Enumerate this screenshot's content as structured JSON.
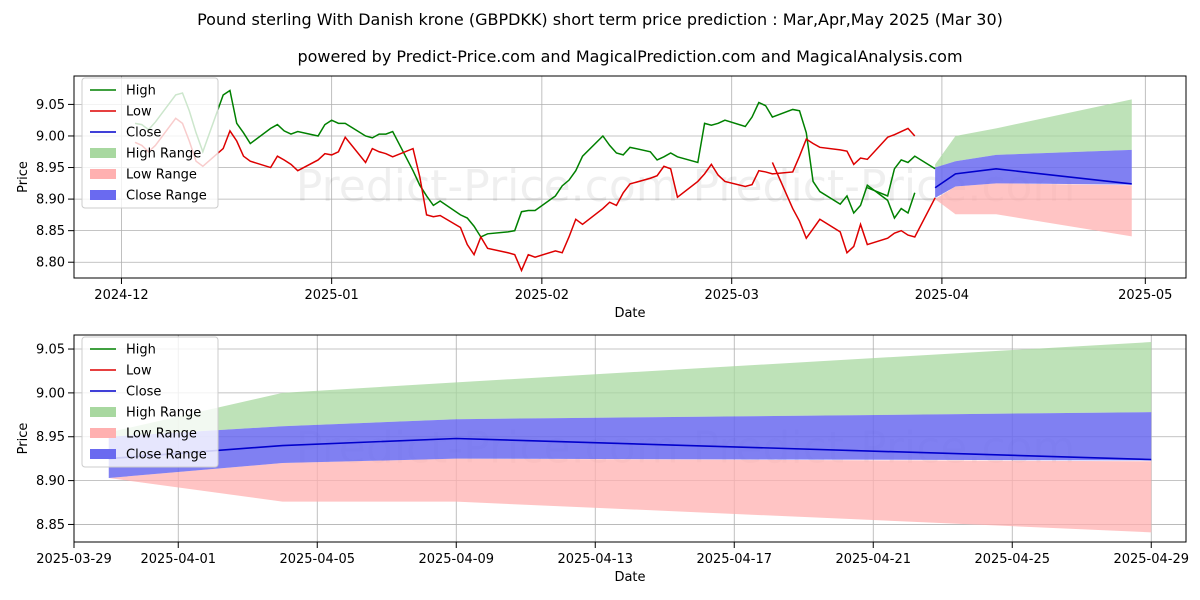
{
  "page": {
    "title": "Pound sterling With Danish krone (GBPDKK) short term price prediction : Mar,Apr,May 2025 (Mar 30)",
    "subtitle": "powered by Predict-Price.com and MagicalPrediction.com and MagicalAnalysis.com",
    "watermark": "Predict-Price.com"
  },
  "colors": {
    "high": "#008000",
    "low": "#dd0000",
    "close": "#0000cc",
    "high_range": "#a8d8a0",
    "low_range": "#ffb0b0",
    "close_range": "#6a6af0"
  },
  "chart_data": [
    {
      "id": "top",
      "type": "line",
      "xlabel": "Date",
      "ylabel": "Price",
      "xlim": [
        "2024-11-24",
        "2025-05-07"
      ],
      "ylim": [
        8.775,
        9.095
      ],
      "x_ticks": [
        "2024-12-01",
        "2025-01-01",
        "2025-02-01",
        "2025-03-01",
        "2025-04-01",
        "2025-05-01"
      ],
      "x_tick_labels": [
        "2024-12",
        "2025-01",
        "2025-02",
        "2025-03",
        "2025-04",
        "2025-05"
      ],
      "y_ticks": [
        8.8,
        8.85,
        8.9,
        8.95,
        9.0,
        9.05
      ],
      "y_tick_labels": [
        "8.80",
        "8.85",
        "8.90",
        "8.95",
        "9.00",
        "9.05"
      ],
      "grid": true,
      "legend_position": "top-left",
      "legend": [
        "High",
        "Low",
        "Close",
        "High Range",
        "Low Range",
        "Close Range"
      ],
      "series": [
        {
          "name": "High",
          "kind": "line",
          "color_key": "high",
          "x": [
            "2024-12-03",
            "2024-12-04",
            "2024-12-05",
            "2024-12-06",
            "2024-12-09",
            "2024-12-10",
            "2024-12-11",
            "2024-12-12",
            "2024-12-13",
            "2024-12-16",
            "2024-12-17",
            "2024-12-18",
            "2024-12-19",
            "2024-12-20",
            "2024-12-23",
            "2024-12-24",
            "2024-12-25",
            "2024-12-26",
            "2024-12-27",
            "2024-12-30",
            "2024-12-31",
            "2025-01-01",
            "2025-01-02",
            "2025-01-03",
            "2025-01-06",
            "2025-01-07",
            "2025-01-08",
            "2025-01-09",
            "2025-01-10",
            "2025-01-13",
            "2025-01-14",
            "2025-01-15",
            "2025-01-16",
            "2025-01-17",
            "2025-01-20",
            "2025-01-21",
            "2025-01-22",
            "2025-01-23",
            "2025-01-24",
            "2025-01-27",
            "2025-01-28",
            "2025-01-29",
            "2025-01-30",
            "2025-01-31",
            "2025-02-03",
            "2025-02-04",
            "2025-02-05",
            "2025-02-06",
            "2025-02-07",
            "2025-02-10",
            "2025-02-11",
            "2025-02-12",
            "2025-02-13",
            "2025-02-14",
            "2025-02-17",
            "2025-02-18",
            "2025-02-19",
            "2025-02-20",
            "2025-02-21",
            "2025-02-24",
            "2025-02-25",
            "2025-02-26",
            "2025-02-27",
            "2025-02-28",
            "2025-03-03",
            "2025-03-04",
            "2025-03-05",
            "2025-03-06",
            "2025-03-07",
            "2025-03-10",
            "2025-03-11",
            "2025-03-12",
            "2025-03-13",
            "2025-03-14",
            "2025-03-17",
            "2025-03-18",
            "2025-03-19",
            "2025-03-20",
            "2025-03-21",
            "2025-03-24",
            "2025-03-25",
            "2025-03-26",
            "2025-03-27",
            "2025-03-28"
          ],
          "values": [
            9.02,
            9.018,
            9.01,
            9.022,
            9.065,
            9.068,
            9.04,
            9.005,
            8.975,
            9.065,
            9.072,
            9.02,
            9.005,
            8.988,
            9.012,
            9.018,
            9.008,
            9.003,
            9.007,
            9.0,
            9.018,
            9.025,
            9.02,
            9.02,
            9.0,
            8.997,
            9.003,
            9.003,
            9.007,
            8.945,
            8.922,
            8.905,
            8.89,
            8.897,
            8.875,
            8.87,
            8.857,
            8.84,
            8.845,
            8.848,
            8.85,
            8.88,
            8.882,
            8.882,
            8.905,
            8.921,
            8.93,
            8.945,
            8.968,
            9.0,
            8.985,
            8.973,
            8.97,
            8.982,
            8.975,
            8.962,
            8.967,
            8.973,
            8.967,
            8.958,
            9.02,
            9.017,
            9.02,
            9.025,
            9.015,
            9.03,
            9.053,
            9.048,
            9.03,
            9.042,
            9.04,
            9.005,
            8.928,
            8.912,
            8.892,
            8.905,
            8.878,
            8.89,
            8.922,
            8.898,
            8.87,
            8.885,
            8.878,
            8.91
          ]
        },
        {
          "name": "High-late",
          "kind": "line",
          "color_key": "high",
          "x": [
            "2025-03-21",
            "2025-03-24",
            "2025-03-25",
            "2025-03-26",
            "2025-03-27",
            "2025-03-28",
            "2025-03-31"
          ],
          "values": [
            8.918,
            8.905,
            8.948,
            8.962,
            8.958,
            8.968,
            8.948
          ],
          "legend": false
        },
        {
          "name": "Low",
          "kind": "line",
          "color_key": "low",
          "x": [
            "2024-12-03",
            "2024-12-04",
            "2024-12-05",
            "2024-12-06",
            "2024-12-09",
            "2024-12-10",
            "2024-12-11",
            "2024-12-12",
            "2024-12-13",
            "2024-12-16",
            "2024-12-17",
            "2024-12-18",
            "2024-12-19",
            "2024-12-20",
            "2024-12-23",
            "2024-12-24",
            "2024-12-25",
            "2024-12-26",
            "2024-12-27",
            "2024-12-30",
            "2024-12-31",
            "2025-01-01",
            "2025-01-02",
            "2025-01-03",
            "2025-01-06",
            "2025-01-07",
            "2025-01-08",
            "2025-01-09",
            "2025-01-10",
            "2025-01-13",
            "2025-01-14",
            "2025-01-15",
            "2025-01-16",
            "2025-01-17",
            "2025-01-20",
            "2025-01-21",
            "2025-01-22",
            "2025-01-23",
            "2025-01-24",
            "2025-01-27",
            "2025-01-28",
            "2025-01-29",
            "2025-01-30",
            "2025-01-31",
            "2025-02-03",
            "2025-02-04",
            "2025-02-05",
            "2025-02-06",
            "2025-02-07",
            "2025-02-10",
            "2025-02-11",
            "2025-02-12",
            "2025-02-13",
            "2025-02-14",
            "2025-02-17",
            "2025-02-18",
            "2025-02-19",
            "2025-02-20",
            "2025-02-21",
            "2025-02-24",
            "2025-02-25",
            "2025-02-26",
            "2025-02-27",
            "2025-02-28",
            "2025-03-03",
            "2025-03-04",
            "2025-03-05",
            "2025-03-06",
            "2025-03-07",
            "2025-03-10",
            "2025-03-11",
            "2025-03-12",
            "2025-03-13",
            "2025-03-14",
            "2025-03-17",
            "2025-03-18",
            "2025-03-19",
            "2025-03-20",
            "2025-03-21",
            "2025-03-24",
            "2025-03-25",
            "2025-03-26",
            "2025-03-27",
            "2025-03-28"
          ],
          "values": [
            8.99,
            8.985,
            8.975,
            8.985,
            9.028,
            9.02,
            8.992,
            8.96,
            8.952,
            8.98,
            9.008,
            8.992,
            8.968,
            8.96,
            8.95,
            8.968,
            8.962,
            8.955,
            8.945,
            8.962,
            8.972,
            8.97,
            8.975,
            8.998,
            8.958,
            8.98,
            8.975,
            8.972,
            8.967,
            8.98,
            8.935,
            8.875,
            8.872,
            8.874,
            8.855,
            8.828,
            8.812,
            8.84,
            8.822,
            8.815,
            8.812,
            8.787,
            8.812,
            8.808,
            8.818,
            8.815,
            8.84,
            8.868,
            8.86,
            8.885,
            8.895,
            8.89,
            8.91,
            8.924,
            8.933,
            8.937,
            8.952,
            8.948,
            8.903,
            8.928,
            8.94,
            8.955,
            8.938,
            8.928,
            8.92,
            8.923,
            8.945,
            8.943,
            8.94,
            8.943,
            8.968,
            8.995,
            8.988,
            8.982,
            8.978,
            8.976,
            8.955,
            8.965,
            8.963,
            8.998,
            9.002,
            9.007,
            9.012,
            9.0
          ]
        },
        {
          "name": "Low-late",
          "kind": "line",
          "color_key": "low",
          "x": [
            "2025-03-07",
            "2025-03-10",
            "2025-03-11",
            "2025-03-12",
            "2025-03-13",
            "2025-03-14",
            "2025-03-17",
            "2025-03-18",
            "2025-03-19",
            "2025-03-20",
            "2025-03-21",
            "2025-03-24",
            "2025-03-25",
            "2025-03-26",
            "2025-03-27",
            "2025-03-28",
            "2025-03-31"
          ],
          "values": [
            8.958,
            8.885,
            8.865,
            8.838,
            8.853,
            8.868,
            8.848,
            8.815,
            8.825,
            8.86,
            8.828,
            8.838,
            8.846,
            8.85,
            8.843,
            8.84,
            8.902
          ],
          "legend": false
        }
      ],
      "bands": [
        {
          "name": "High Range",
          "color_key": "high_range",
          "x": [
            "2025-03-31",
            "2025-04-03",
            "2025-04-09",
            "2025-04-29"
          ],
          "upper": [
            8.955,
            9.0,
            9.012,
            9.058
          ],
          "lower": [
            8.95,
            8.96,
            8.97,
            8.978
          ]
        },
        {
          "name": "Low Range",
          "color_key": "low_range",
          "x": [
            "2025-03-31",
            "2025-04-03",
            "2025-04-09",
            "2025-04-29"
          ],
          "upper": [
            8.9,
            8.92,
            8.925,
            8.922
          ],
          "lower": [
            8.9,
            8.876,
            8.876,
            8.841
          ]
        },
        {
          "name": "Close Range",
          "color_key": "close_range",
          "x": [
            "2025-03-31",
            "2025-04-03",
            "2025-04-09",
            "2025-04-29"
          ],
          "upper": [
            8.95,
            8.96,
            8.97,
            8.978
          ],
          "lower": [
            8.902,
            8.92,
            8.925,
            8.923
          ]
        }
      ],
      "forecast": {
        "name": "Close",
        "color_key": "close",
        "x": [
          "2025-03-31",
          "2025-04-03",
          "2025-04-09",
          "2025-04-29"
        ],
        "values": [
          8.918,
          8.94,
          8.948,
          8.924
        ]
      }
    },
    {
      "id": "bottom",
      "type": "area",
      "xlabel": "Date",
      "ylabel": "Price",
      "xlim": [
        "2025-03-29",
        "2025-04-30"
      ],
      "ylim": [
        8.83,
        9.066
      ],
      "x_ticks": [
        "2025-03-29",
        "2025-04-01",
        "2025-04-05",
        "2025-04-09",
        "2025-04-13",
        "2025-04-17",
        "2025-04-21",
        "2025-04-25",
        "2025-04-29"
      ],
      "x_tick_labels": [
        "2025-03-29",
        "2025-04-01",
        "2025-04-05",
        "2025-04-09",
        "2025-04-13",
        "2025-04-17",
        "2025-04-21",
        "2025-04-25",
        "2025-04-29"
      ],
      "y_ticks": [
        8.85,
        8.9,
        8.95,
        9.0,
        9.05
      ],
      "y_tick_labels": [
        "8.85",
        "8.90",
        "8.95",
        "9.00",
        "9.05"
      ],
      "grid": true,
      "legend_position": "top-left",
      "legend": [
        "High",
        "Low",
        "Close",
        "High Range",
        "Low Range",
        "Close Range"
      ],
      "bands": [
        {
          "name": "High Range",
          "color_key": "high_range",
          "x": [
            "2025-03-30",
            "2025-04-04",
            "2025-04-09",
            "2025-04-29"
          ],
          "upper": [
            8.955,
            9.0,
            9.012,
            9.058
          ],
          "lower": [
            8.95,
            8.962,
            8.97,
            8.978
          ]
        },
        {
          "name": "Low Range",
          "color_key": "low_range",
          "x": [
            "2025-03-30",
            "2025-04-04",
            "2025-04-09",
            "2025-04-29"
          ],
          "upper": [
            8.903,
            8.92,
            8.925,
            8.922
          ],
          "lower": [
            8.903,
            8.876,
            8.876,
            8.841
          ]
        },
        {
          "name": "Close Range",
          "color_key": "close_range",
          "x": [
            "2025-03-30",
            "2025-04-04",
            "2025-04-09",
            "2025-04-29"
          ],
          "upper": [
            8.95,
            8.962,
            8.97,
            8.978
          ],
          "lower": [
            8.903,
            8.92,
            8.925,
            8.923
          ]
        }
      ],
      "forecast": {
        "name": "Close",
        "color_key": "close",
        "x": [
          "2025-03-30",
          "2025-04-04",
          "2025-04-09",
          "2025-04-29"
        ],
        "values": [
          8.925,
          8.94,
          8.948,
          8.924
        ]
      }
    }
  ]
}
